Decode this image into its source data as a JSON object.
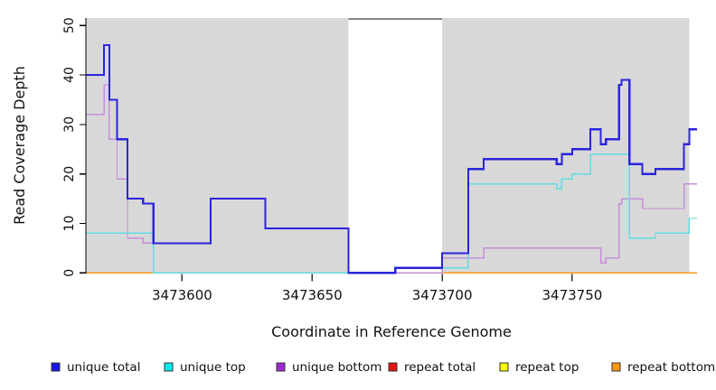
{
  "chart_data": {
    "type": "line",
    "step": true,
    "title": "",
    "xlabel": "Coordinate in Reference Genome",
    "ylabel": "Read Coverage Depth",
    "xlim": [
      3473563,
      3473798
    ],
    "ylim": [
      0,
      51.5
    ],
    "x_ticks": [
      3473600,
      3473650,
      3473700,
      3473750
    ],
    "y_ticks": [
      0,
      10,
      20,
      30,
      40,
      50
    ],
    "grid": false,
    "background_bands": [
      {
        "name": "mappable-region-left",
        "from": 3473563,
        "to": 3473664,
        "color": "#d8d8d8"
      },
      {
        "name": "mappable-region-right",
        "from": 3473700,
        "to": 3473795,
        "color": "#d8d8d8"
      }
    ],
    "gap_region": {
      "name": "repeat-gap",
      "from": 3473664,
      "to": 3473700,
      "top_line_color": "#858585"
    },
    "series": [
      {
        "name": "unique bottom",
        "color": "#c48fda",
        "width": 1.4,
        "points": [
          [
            3473563,
            32
          ],
          [
            3473570,
            38
          ],
          [
            3473572,
            27
          ],
          [
            3473575,
            19
          ],
          [
            3473579,
            7
          ],
          [
            3473585,
            6
          ],
          [
            3473611,
            15
          ],
          [
            3473632,
            9
          ],
          [
            3473664,
            0
          ],
          [
            3473700,
            3
          ],
          [
            3473716,
            5
          ],
          [
            3473761,
            2
          ],
          [
            3473763,
            3
          ],
          [
            3473768,
            14
          ],
          [
            3473769,
            15
          ],
          [
            3473777,
            13
          ],
          [
            3473793,
            18
          ]
        ]
      },
      {
        "name": "unique top",
        "color": "#5fdde2",
        "width": 1.4,
        "points": [
          [
            3473563,
            8
          ],
          [
            3473589,
            0
          ],
          [
            3473682,
            1
          ],
          [
            3473710,
            18
          ],
          [
            3473744,
            17
          ],
          [
            3473746,
            19
          ],
          [
            3473750,
            20
          ],
          [
            3473757,
            24
          ],
          [
            3473772,
            7
          ],
          [
            3473782,
            8
          ],
          [
            3473795,
            11
          ]
        ]
      },
      {
        "name": "unique total",
        "color": "#2b24dd",
        "width": 2.2,
        "points": [
          [
            3473563,
            40
          ],
          [
            3473570,
            46
          ],
          [
            3473572,
            35
          ],
          [
            3473575,
            27
          ],
          [
            3473579,
            15
          ],
          [
            3473585,
            14
          ],
          [
            3473589,
            6
          ],
          [
            3473611,
            15
          ],
          [
            3473632,
            9
          ],
          [
            3473664,
            0
          ],
          [
            3473682,
            1
          ],
          [
            3473700,
            4
          ],
          [
            3473710,
            21
          ],
          [
            3473716,
            23
          ],
          [
            3473744,
            22
          ],
          [
            3473746,
            24
          ],
          [
            3473750,
            25
          ],
          [
            3473757,
            29
          ],
          [
            3473761,
            26
          ],
          [
            3473763,
            27
          ],
          [
            3473768,
            38
          ],
          [
            3473769,
            39
          ],
          [
            3473772,
            22
          ],
          [
            3473777,
            20
          ],
          [
            3473782,
            21
          ],
          [
            3473793,
            26
          ],
          [
            3473795,
            29
          ]
        ]
      }
    ],
    "baseline_segments": [
      {
        "name": "repeat-bottom-left",
        "color": "#ff9718",
        "width": 1.8,
        "from": 3473563,
        "to": 3473589,
        "value": 0
      },
      {
        "name": "repeat-overlap-green",
        "color": "#8ac88a",
        "width": 1.4,
        "from": 3473589,
        "to": 3473664,
        "value": 0
      },
      {
        "name": "repeat-total-gap",
        "color": "#e07090",
        "width": 1.4,
        "from": 3473664,
        "to": 3473700,
        "value": 0
      },
      {
        "name": "repeat-bottom-right",
        "color": "#ff9718",
        "width": 1.8,
        "from": 3473700,
        "to": 3473798,
        "value": 0
      }
    ],
    "legend": [
      {
        "label": "unique total",
        "color": "#1515e6"
      },
      {
        "label": "unique top",
        "color": "#00eeee"
      },
      {
        "label": "unique bottom",
        "color": "#a128d3"
      },
      {
        "label": "repeat total",
        "color": "#ee1111"
      },
      {
        "label": "repeat top",
        "color": "#ffff00"
      },
      {
        "label": "repeat bottom",
        "color": "#ff9912"
      }
    ],
    "legend_position": "bottom"
  }
}
